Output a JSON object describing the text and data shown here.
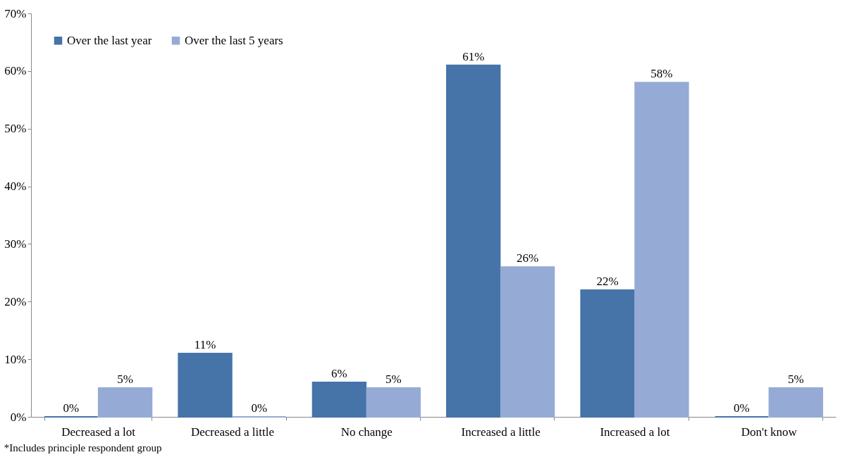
{
  "chart_data": {
    "type": "bar",
    "categories": [
      "Decreased a lot",
      "Decreased a little",
      "No change",
      "Increased a little",
      "Increased a lot",
      "Don't know"
    ],
    "series": [
      {
        "name": "Over the last year",
        "color": "#4673a8",
        "values": [
          0,
          11,
          6,
          61,
          22,
          0
        ],
        "value_labels": [
          "0%",
          "11%",
          "6%",
          "61%",
          "22%",
          "0%"
        ]
      },
      {
        "name": "Over the last 5 years",
        "color": "#95abd5",
        "values": [
          5,
          0,
          5,
          26,
          58,
          5
        ],
        "value_labels": [
          "5%",
          "0%",
          "5%",
          "26%",
          "58%",
          "5%"
        ]
      }
    ],
    "ylim": [
      0,
      70
    ],
    "yticks": [
      {
        "value": 0,
        "label": "0%"
      },
      {
        "value": 10,
        "label": "10%"
      },
      {
        "value": 20,
        "label": "20%"
      },
      {
        "value": 30,
        "label": "30%"
      },
      {
        "value": 40,
        "label": "40%"
      },
      {
        "value": 50,
        "label": "50%"
      },
      {
        "value": 60,
        "label": "60%"
      },
      {
        "value": 70,
        "label": "70%"
      }
    ],
    "grid": false,
    "legend": "top left",
    "annotations": [
      "*Includes principle respondent group"
    ]
  }
}
